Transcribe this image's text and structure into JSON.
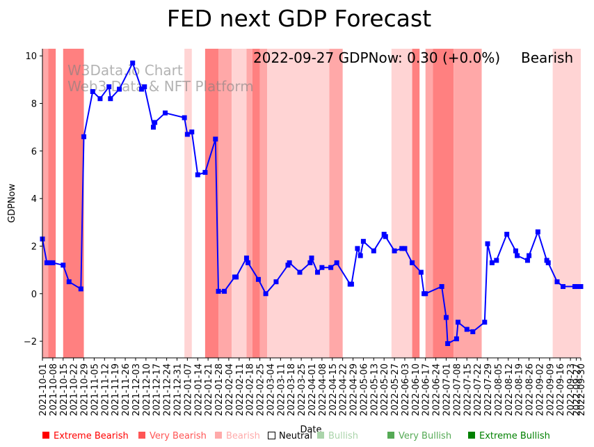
{
  "chart_data": {
    "type": "line",
    "title": "FED next GDP Forecast",
    "xlabel": "Date",
    "ylabel": "GDPNow",
    "xlim": [
      "2021-10-01",
      "2022-09-30"
    ],
    "ylim": [
      -2.7,
      10.3
    ],
    "yticks": [
      -2,
      0,
      2,
      4,
      6,
      8,
      10
    ],
    "ytick_labels": [
      "−2",
      "0",
      "2",
      "4",
      "6",
      "8",
      "10"
    ],
    "xtick_labels": [
      "2021-10-01",
      "2021-10-08",
      "2021-10-15",
      "2021-10-22",
      "2021-10-29",
      "2021-11-05",
      "2021-11-12",
      "2021-11-19",
      "2021-11-26",
      "2021-12-03",
      "2021-12-10",
      "2021-12-17",
      "2021-12-24",
      "2021-12-31",
      "2022-01-07",
      "2022-01-14",
      "2022-01-21",
      "2022-01-28",
      "2022-02-04",
      "2022-02-11",
      "2022-02-18",
      "2022-02-25",
      "2022-03-04",
      "2022-03-11",
      "2022-03-18",
      "2022-03-25",
      "2022-04-01",
      "2022-04-08",
      "2022-04-15",
      "2022-04-22",
      "2022-04-29",
      "2022-05-06",
      "2022-05-13",
      "2022-05-20",
      "2022-05-27",
      "2022-06-03",
      "2022-06-10",
      "2022-06-17",
      "2022-06-24",
      "2022-07-01",
      "2022-07-08",
      "2022-07-15",
      "2022-07-22",
      "2022-07-29",
      "2022-08-05",
      "2022-08-12",
      "2022-08-19",
      "2022-08-26",
      "2022-09-02",
      "2022-09-09",
      "2022-09-16",
      "2022-09-23",
      "2022-09-30",
      "2022-09-27"
    ],
    "grid": false,
    "series": [
      {
        "name": "GDPNow",
        "color": "#0000ff",
        "marker": "square",
        "points": [
          [
            "2021-10-01",
            2.3
          ],
          [
            "2021-10-04",
            1.3
          ],
          [
            "2021-10-06",
            1.3
          ],
          [
            "2021-10-08",
            1.3
          ],
          [
            "2021-10-15",
            1.2
          ],
          [
            "2021-10-19",
            0.5
          ],
          [
            "2021-10-27",
            0.2
          ],
          [
            "2021-10-29",
            6.6
          ],
          [
            "2021-11-04",
            8.5
          ],
          [
            "2021-11-09",
            8.2
          ],
          [
            "2021-11-15",
            8.7
          ],
          [
            "2021-11-16",
            8.2
          ],
          [
            "2021-11-22",
            8.6
          ],
          [
            "2021-12-01",
            9.7
          ],
          [
            "2021-12-07",
            8.6
          ],
          [
            "2021-12-09",
            8.7
          ],
          [
            "2021-12-15",
            7.0
          ],
          [
            "2021-12-16",
            7.2
          ],
          [
            "2021-12-23",
            7.6
          ],
          [
            "2022-01-05",
            7.4
          ],
          [
            "2022-01-07",
            6.7
          ],
          [
            "2022-01-10",
            6.8
          ],
          [
            "2022-01-14",
            5.0
          ],
          [
            "2022-01-19",
            5.1
          ],
          [
            "2022-01-26",
            6.5
          ],
          [
            "2022-01-28",
            0.1
          ],
          [
            "2022-02-01",
            0.1
          ],
          [
            "2022-02-08",
            0.7
          ],
          [
            "2022-02-09",
            0.7
          ],
          [
            "2022-02-16",
            1.5
          ],
          [
            "2022-02-17",
            1.3
          ],
          [
            "2022-02-24",
            0.6
          ],
          [
            "2022-03-01",
            0.0
          ],
          [
            "2022-03-08",
            0.5
          ],
          [
            "2022-03-16",
            1.2
          ],
          [
            "2022-03-17",
            1.3
          ],
          [
            "2022-03-24",
            0.9
          ],
          [
            "2022-03-31",
            1.3
          ],
          [
            "2022-04-01",
            1.5
          ],
          [
            "2022-04-05",
            0.9
          ],
          [
            "2022-04-08",
            1.1
          ],
          [
            "2022-04-14",
            1.1
          ],
          [
            "2022-04-18",
            1.3
          ],
          [
            "2022-04-27",
            0.4
          ],
          [
            "2022-04-28",
            0.4
          ],
          [
            "2022-05-02",
            1.9
          ],
          [
            "2022-05-04",
            1.6
          ],
          [
            "2022-05-06",
            2.2
          ],
          [
            "2022-05-13",
            1.8
          ],
          [
            "2022-05-20",
            2.5
          ],
          [
            "2022-05-21",
            2.4
          ],
          [
            "2022-05-27",
            1.8
          ],
          [
            "2022-06-01",
            1.9
          ],
          [
            "2022-06-03",
            1.9
          ],
          [
            "2022-06-08",
            1.3
          ],
          [
            "2022-06-14",
            0.9
          ],
          [
            "2022-06-16",
            0.0
          ],
          [
            "2022-06-17",
            0.0
          ],
          [
            "2022-06-28",
            0.3
          ],
          [
            "2022-07-01",
            -1.0
          ],
          [
            "2022-07-02",
            -2.1
          ],
          [
            "2022-07-08",
            -1.9
          ],
          [
            "2022-07-09",
            -1.2
          ],
          [
            "2022-07-15",
            -1.5
          ],
          [
            "2022-07-19",
            -1.6
          ],
          [
            "2022-07-27",
            -1.2
          ],
          [
            "2022-07-29",
            2.1
          ],
          [
            "2022-08-01",
            1.3
          ],
          [
            "2022-08-04",
            1.4
          ],
          [
            "2022-08-11",
            2.5
          ],
          [
            "2022-08-17",
            1.8
          ],
          [
            "2022-08-18",
            1.6
          ],
          [
            "2022-08-25",
            1.4
          ],
          [
            "2022-08-26",
            1.6
          ],
          [
            "2022-09-01",
            2.6
          ],
          [
            "2022-09-07",
            1.4
          ],
          [
            "2022-09-08",
            1.3
          ],
          [
            "2022-09-14",
            0.5
          ],
          [
            "2022-09-18",
            0.3
          ],
          [
            "2022-09-26",
            0.3
          ],
          [
            "2022-09-27",
            0.3
          ],
          [
            "2022-09-30",
            0.3
          ]
        ]
      }
    ],
    "bands": [
      {
        "start": "2021-10-01",
        "end": "2021-10-05",
        "level": "bearish"
      },
      {
        "start": "2021-10-05",
        "end": "2021-10-10",
        "level": "very_bearish"
      },
      {
        "start": "2021-10-15",
        "end": "2021-10-29",
        "level": "very_bearish"
      },
      {
        "start": "2022-01-05",
        "end": "2022-01-10",
        "level": "light"
      },
      {
        "start": "2022-01-19",
        "end": "2022-01-28",
        "level": "very_bearish"
      },
      {
        "start": "2022-01-28",
        "end": "2022-02-06",
        "level": "bearish"
      },
      {
        "start": "2022-02-06",
        "end": "2022-02-16",
        "level": "light"
      },
      {
        "start": "2022-02-16",
        "end": "2022-02-20",
        "level": "bearish"
      },
      {
        "start": "2022-02-20",
        "end": "2022-02-25",
        "level": "very_bearish"
      },
      {
        "start": "2022-02-25",
        "end": "2022-03-02",
        "level": "bearish"
      },
      {
        "start": "2022-03-02",
        "end": "2022-04-13",
        "level": "light"
      },
      {
        "start": "2022-04-13",
        "end": "2022-04-22",
        "level": "bearish"
      },
      {
        "start": "2022-05-25",
        "end": "2022-06-08",
        "level": "light"
      },
      {
        "start": "2022-06-08",
        "end": "2022-06-13",
        "level": "very_bearish"
      },
      {
        "start": "2022-06-17",
        "end": "2022-06-22",
        "level": "bearish"
      },
      {
        "start": "2022-06-22",
        "end": "2022-07-06",
        "level": "very_bearish"
      },
      {
        "start": "2022-07-06",
        "end": "2022-07-25",
        "level": "bearish"
      },
      {
        "start": "2022-09-11",
        "end": "2022-09-30",
        "level": "light"
      }
    ],
    "band_colors": {
      "light": "#ffd4d4",
      "bearish": "#ffa8a8",
      "very_bearish": "#ff8080"
    },
    "legend": {
      "position": "bottom",
      "entries": [
        {
          "label": "Extreme Bearish",
          "color": "#ff0000",
          "filled": true
        },
        {
          "label": "Very Bearish",
          "color": "#ff5555",
          "filled": true
        },
        {
          "label": "Bearish",
          "color": "#ffaaaa",
          "filled": true
        },
        {
          "label": "Neutral",
          "color": "#000000",
          "filled": false
        },
        {
          "label": "Bullish",
          "color": "#aad4aa",
          "filled": true
        },
        {
          "label": "Very Bullish",
          "color": "#55aa55",
          "filled": true
        },
        {
          "label": "Extreme Bullish",
          "color": "#008000",
          "filled": true
        }
      ]
    },
    "annotations": {
      "watermark_line1": "W3Data.io Chart",
      "watermark_line2": "Web3 Data & NFT Platform",
      "status": "2022-09-27 GDPNow: 0.30 (+0.0%)",
      "sentiment": "Bearish",
      "sentiment_color": "#ffaaaa"
    }
  }
}
